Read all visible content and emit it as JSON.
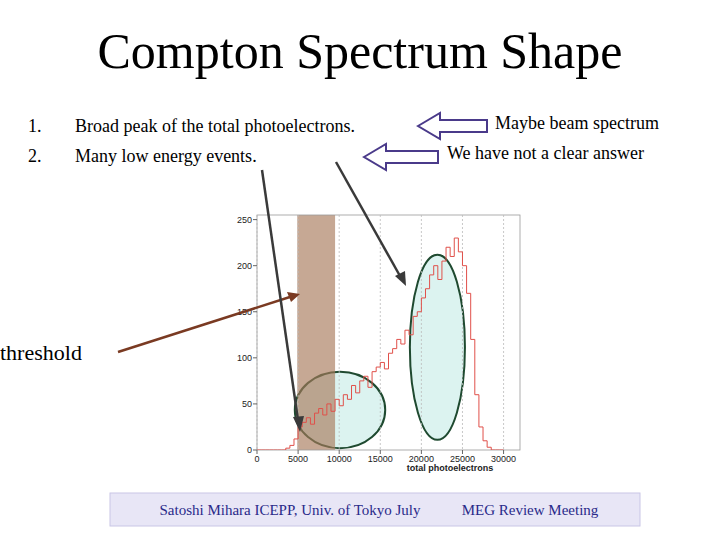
{
  "slide": {
    "title": "Compton Spectrum Shape",
    "items": [
      {
        "number": "1.",
        "text": "Broad peak of the total photoelectrons.",
        "note": "Maybe beam spectrum"
      },
      {
        "number": "2.",
        "text": "Many low energy events.",
        "note": "We have not a clear answer"
      }
    ],
    "callout": "threshold",
    "footer": {
      "left": "Satoshi Mihara ICEPP, Univ. of Tokyo July",
      "right": "MEG Review Meeting"
    }
  },
  "chart_data": {
    "type": "histogram",
    "x_label": "total photoelectrons",
    "bins": [
      0,
      500,
      1000,
      1500,
      2000,
      2500,
      3000,
      3500,
      4000,
      4500,
      5000,
      5500,
      6000,
      6500,
      7000,
      7500,
      8000,
      8500,
      9000,
      9500,
      10000,
      10500,
      11000,
      11500,
      12000,
      12500,
      13000,
      13500,
      14000,
      14500,
      15000,
      15500,
      16000,
      16500,
      17000,
      17500,
      18000,
      18500,
      19000,
      19500,
      20000,
      20500,
      21000,
      21500,
      22000,
      22500,
      23000,
      23500,
      24000,
      24500,
      25000,
      25500,
      26000,
      26500,
      27000,
      27500,
      28000,
      28500,
      29000,
      29500,
      30000
    ],
    "values": [
      0,
      0,
      0,
      0,
      0,
      0,
      0,
      2,
      5,
      12,
      25,
      30,
      35,
      28,
      40,
      45,
      38,
      50,
      42,
      55,
      48,
      60,
      55,
      70,
      62,
      75,
      80,
      68,
      85,
      90,
      95,
      88,
      105,
      110,
      120,
      115,
      130,
      125,
      145,
      150,
      165,
      175,
      190,
      200,
      185,
      205,
      220,
      210,
      230,
      215,
      200,
      170,
      120,
      60,
      25,
      10,
      3,
      0,
      0,
      0
    ],
    "color": "#e0504a",
    "xlim": [
      0,
      32000
    ],
    "ylim": [
      0,
      255
    ],
    "xticks": [
      0,
      5000,
      10000,
      15000,
      20000,
      25000,
      30000
    ],
    "yticks": [
      0,
      50,
      100,
      150,
      200,
      250
    ],
    "grid": true,
    "threshold_band": [
      4900,
      9500
    ],
    "highlights": [
      {
        "x": [
          4600,
          15600
        ],
        "y": [
          2,
          85
        ]
      },
      {
        "x": [
          18600,
          25300
        ],
        "y": [
          11,
          212
        ]
      }
    ]
  }
}
